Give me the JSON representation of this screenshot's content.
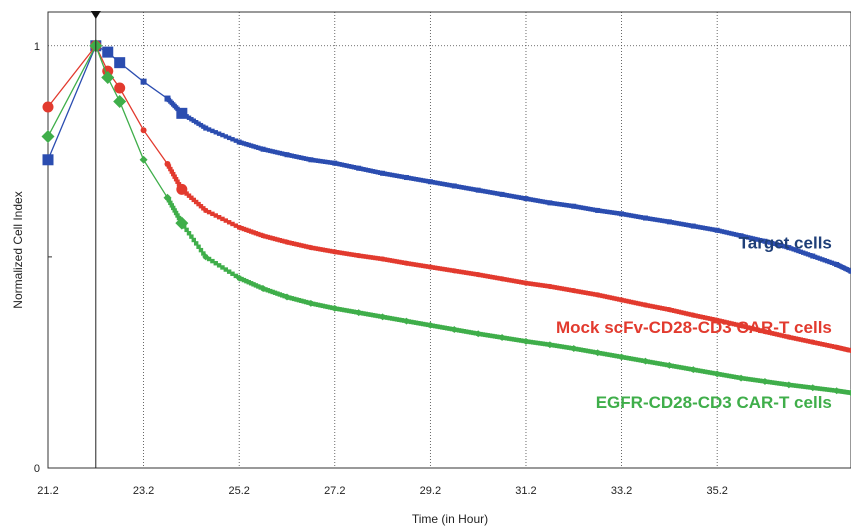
{
  "chart_data": {
    "type": "line",
    "title": "",
    "xlabel": "Time (in Hour)",
    "ylabel": "Normalized Cell Index",
    "xlim": [
      21.2,
      38.0
    ],
    "ylim": [
      0,
      1.08
    ],
    "xticks": [
      "21.2",
      "23.2",
      "25.2",
      "27.2",
      "29.2",
      "31.2",
      "33.2",
      "35.2"
    ],
    "xtick_values": [
      21.2,
      23.2,
      25.2,
      27.2,
      29.2,
      31.2,
      33.2,
      35.2
    ],
    "yticks": [
      "0",
      "1"
    ],
    "ytick_values": [
      0,
      1
    ],
    "grid": true,
    "normalization_time": 22.2,
    "series": [
      {
        "name": "Target cells",
        "color": "#2b4db0",
        "label_color": "#1f3f78",
        "x": [
          21.2,
          22.2,
          22.45,
          22.7,
          23.2,
          23.7,
          24.0,
          24.5,
          25.2,
          25.7,
          26.2,
          26.7,
          27.2,
          27.7,
          28.2,
          28.7,
          29.2,
          29.7,
          30.2,
          30.7,
          31.2,
          31.7,
          32.2,
          32.7,
          33.2,
          33.7,
          34.2,
          34.7,
          35.2,
          35.7,
          36.2,
          36.7,
          37.2,
          37.7,
          38.0
        ],
        "values": [
          0.73,
          1.0,
          0.985,
          0.96,
          0.915,
          0.875,
          0.84,
          0.805,
          0.772,
          0.755,
          0.742,
          0.73,
          0.722,
          0.71,
          0.698,
          0.688,
          0.678,
          0.668,
          0.658,
          0.648,
          0.638,
          0.628,
          0.62,
          0.61,
          0.602,
          0.592,
          0.583,
          0.573,
          0.563,
          0.55,
          0.537,
          0.522,
          0.502,
          0.482,
          0.466
        ]
      },
      {
        "name": "Mock scFv-CD28-CD3 CAR-T cells",
        "color": "#e23a2e",
        "label_color": "#e23a2e",
        "x": [
          21.2,
          22.2,
          22.45,
          22.7,
          23.2,
          23.7,
          24.0,
          24.5,
          25.2,
          25.7,
          26.2,
          26.7,
          27.2,
          27.7,
          28.2,
          28.7,
          29.2,
          29.7,
          30.2,
          30.7,
          31.2,
          31.7,
          32.2,
          32.7,
          33.2,
          33.7,
          34.2,
          34.7,
          35.2,
          35.7,
          36.2,
          36.7,
          37.2,
          37.7,
          38.0
        ],
        "values": [
          0.855,
          1.0,
          0.94,
          0.9,
          0.8,
          0.72,
          0.66,
          0.61,
          0.57,
          0.55,
          0.535,
          0.522,
          0.512,
          0.503,
          0.495,
          0.485,
          0.476,
          0.467,
          0.458,
          0.448,
          0.438,
          0.43,
          0.42,
          0.41,
          0.398,
          0.386,
          0.375,
          0.362,
          0.35,
          0.337,
          0.323,
          0.31,
          0.298,
          0.286,
          0.278
        ]
      },
      {
        "name": "EGFR-CD28-CD3 CAR-T cells",
        "color": "#3fae4a",
        "label_color": "#3fae4a",
        "x": [
          21.2,
          22.2,
          22.45,
          22.7,
          23.2,
          23.7,
          24.0,
          24.5,
          25.2,
          25.7,
          26.2,
          26.7,
          27.2,
          27.7,
          28.2,
          28.7,
          29.2,
          29.7,
          30.2,
          30.7,
          31.2,
          31.7,
          32.2,
          32.7,
          33.2,
          33.7,
          34.2,
          34.7,
          35.2,
          35.7,
          36.2,
          36.7,
          37.2,
          37.7,
          38.0
        ],
        "values": [
          0.785,
          1.0,
          0.925,
          0.868,
          0.73,
          0.64,
          0.58,
          0.5,
          0.45,
          0.425,
          0.405,
          0.39,
          0.378,
          0.368,
          0.358,
          0.348,
          0.338,
          0.328,
          0.318,
          0.309,
          0.3,
          0.292,
          0.283,
          0.273,
          0.263,
          0.253,
          0.243,
          0.233,
          0.223,
          0.213,
          0.205,
          0.197,
          0.19,
          0.183,
          0.178
        ]
      }
    ],
    "labels": [
      {
        "series": "Target cells",
        "text": "Target cells",
        "x": 37.6,
        "y": 0.52
      },
      {
        "series": "Mock scFv-CD28-CD3 CAR-T cells",
        "text": "Mock scFv-CD28-CD3 CAR-T cells",
        "x": 37.6,
        "y": 0.32
      },
      {
        "series": "EGFR-CD28-CD3 CAR-T cells",
        "text": "EGFR-CD28-CD3 CAR-T cells",
        "x": 37.6,
        "y": 0.142
      }
    ]
  }
}
